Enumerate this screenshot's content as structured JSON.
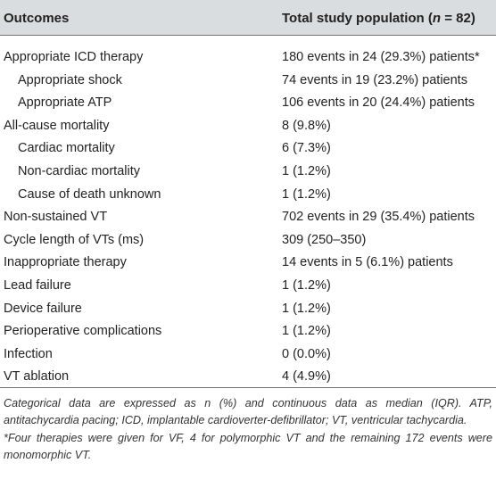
{
  "header": {
    "col1": "Outcomes",
    "col2_prefix": "Total study population (",
    "col2_n": "n",
    "col2_suffix": " = 82)"
  },
  "rows": [
    {
      "label": "Appropriate ICD therapy",
      "value": "180 events in 24 (29.3%) patients*",
      "indent": false
    },
    {
      "label": "Appropriate shock",
      "value": "74 events in 19 (23.2%) patients",
      "indent": true
    },
    {
      "label": "Appropriate ATP",
      "value": "106 events in 20 (24.4%) patients",
      "indent": true
    },
    {
      "label": "All-cause mortality",
      "value": "8 (9.8%)",
      "indent": false
    },
    {
      "label": "Cardiac mortality",
      "value": "6 (7.3%)",
      "indent": true
    },
    {
      "label": "Non-cardiac mortality",
      "value": "1 (1.2%)",
      "indent": true
    },
    {
      "label": "Cause of death unknown",
      "value": "1 (1.2%)",
      "indent": true
    },
    {
      "label": "Non-sustained VT",
      "value": "702 events in 29 (35.4%) patients",
      "indent": false
    },
    {
      "label": "Cycle length of VTs (ms)",
      "value": "309 (250–350)",
      "indent": false
    },
    {
      "label": "Inappropriate therapy",
      "value": "14 events in 5 (6.1%) patients",
      "indent": false
    },
    {
      "label": "Lead failure",
      "value": "1 (1.2%)",
      "indent": false
    },
    {
      "label": "Device failure",
      "value": "1 (1.2%)",
      "indent": false
    },
    {
      "label": "Perioperative complications",
      "value": "1 (1.2%)",
      "indent": false
    },
    {
      "label": "Infection",
      "value": "0 (0.0%)",
      "indent": false
    },
    {
      "label": "VT ablation",
      "value": "4 (4.9%)",
      "indent": false
    }
  ],
  "footnotes": {
    "note1": "Categorical data are expressed as n (%) and continuous data as median (IQR). ATP, antitachycardia pacing; ICD, implantable cardioverter-defibrillator; VT, ventricular tachycardia.",
    "note2": "*Four therapies were given for VF, 4 for polymorphic VT and the remaining 172 events were monomorphic VT."
  }
}
